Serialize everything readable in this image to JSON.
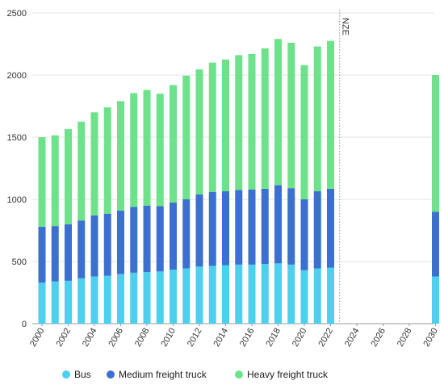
{
  "chart_data": {
    "type": "bar",
    "stacked": true,
    "x": [
      "2000",
      "2001",
      "2002",
      "2003",
      "2004",
      "2005",
      "2006",
      "2007",
      "2008",
      "2009",
      "2010",
      "2011",
      "2012",
      "2013",
      "2014",
      "2015",
      "2016",
      "2017",
      "2018",
      "2019",
      "2020",
      "2021",
      "2022",
      "2030"
    ],
    "series": [
      {
        "name": "Bus",
        "color": "#4dcfee",
        "values": [
          330,
          340,
          345,
          365,
          380,
          385,
          400,
          410,
          415,
          420,
          435,
          445,
          460,
          465,
          470,
          475,
          475,
          480,
          485,
          475,
          430,
          445,
          450,
          380
        ]
      },
      {
        "name": "Medium freight truck",
        "color": "#3b6fd0",
        "values": [
          450,
          445,
          455,
          465,
          490,
          500,
          510,
          530,
          535,
          525,
          540,
          555,
          580,
          595,
          595,
          600,
          605,
          605,
          630,
          615,
          570,
          620,
          635,
          520
        ]
      },
      {
        "name": "Heavy freight truck",
        "color": "#6ee28a",
        "values": [
          720,
          730,
          765,
          795,
          830,
          855,
          880,
          915,
          930,
          905,
          945,
          995,
          1005,
          1040,
          1060,
          1085,
          1090,
          1130,
          1175,
          1170,
          1080,
          1165,
          1190,
          1100
        ]
      }
    ],
    "xticks": [
      "2000",
      "2002",
      "2004",
      "2006",
      "2008",
      "2010",
      "2012",
      "2014",
      "2016",
      "2018",
      "2020",
      "2022",
      "2024",
      "2026",
      "2028",
      "2030"
    ],
    "yticks": [
      "0",
      "500",
      "1000",
      "1500",
      "2000",
      "2500"
    ],
    "ylim": [
      0,
      2500
    ],
    "xlim": [
      2000,
      2030
    ],
    "annotation": "NZE",
    "annotation_x": 2022.5,
    "grid": "horizontal",
    "legend_position": "bottom",
    "legend": [
      "Bus",
      "Medium freight truck",
      "Heavy freight truck"
    ]
  }
}
